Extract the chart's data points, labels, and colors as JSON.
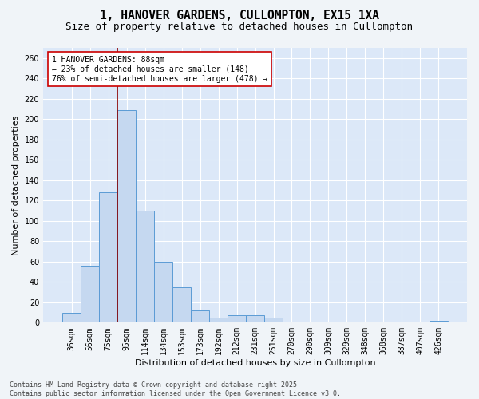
{
  "title": "1, HANOVER GARDENS, CULLOMPTON, EX15 1XA",
  "subtitle": "Size of property relative to detached houses in Cullompton",
  "xlabel": "Distribution of detached houses by size in Cullompton",
  "ylabel": "Number of detached properties",
  "categories": [
    "36sqm",
    "56sqm",
    "75sqm",
    "95sqm",
    "114sqm",
    "134sqm",
    "153sqm",
    "173sqm",
    "192sqm",
    "212sqm",
    "231sqm",
    "251sqm",
    "270sqm",
    "290sqm",
    "309sqm",
    "329sqm",
    "348sqm",
    "368sqm",
    "387sqm",
    "407sqm",
    "426sqm"
  ],
  "values": [
    10,
    56,
    128,
    209,
    110,
    60,
    35,
    12,
    5,
    7,
    7,
    5,
    0,
    0,
    0,
    0,
    0,
    0,
    0,
    0,
    2
  ],
  "bar_color": "#c5d8f0",
  "bar_edge_color": "#5b9bd5",
  "vline_color": "#8b0000",
  "vline_pos": 2.5,
  "annotation_line1": "1 HANOVER GARDENS: 88sqm",
  "annotation_line2": "← 23% of detached houses are smaller (148)",
  "annotation_line3": "76% of semi-detached houses are larger (478) →",
  "annotation_box_color": "#ffffff",
  "annotation_box_edge": "#cc0000",
  "ylim_max": 270,
  "yticks": [
    0,
    20,
    40,
    60,
    80,
    100,
    120,
    140,
    160,
    180,
    200,
    220,
    240,
    260
  ],
  "plot_bg_color": "#dce8f8",
  "fig_bg_color": "#f0f4f8",
  "grid_color": "#ffffff",
  "footer": "Contains HM Land Registry data © Crown copyright and database right 2025.\nContains public sector information licensed under the Open Government Licence v3.0.",
  "title_fontsize": 10.5,
  "subtitle_fontsize": 9,
  "axis_label_fontsize": 8,
  "tick_fontsize": 7,
  "annot_fontsize": 7,
  "footer_fontsize": 6
}
